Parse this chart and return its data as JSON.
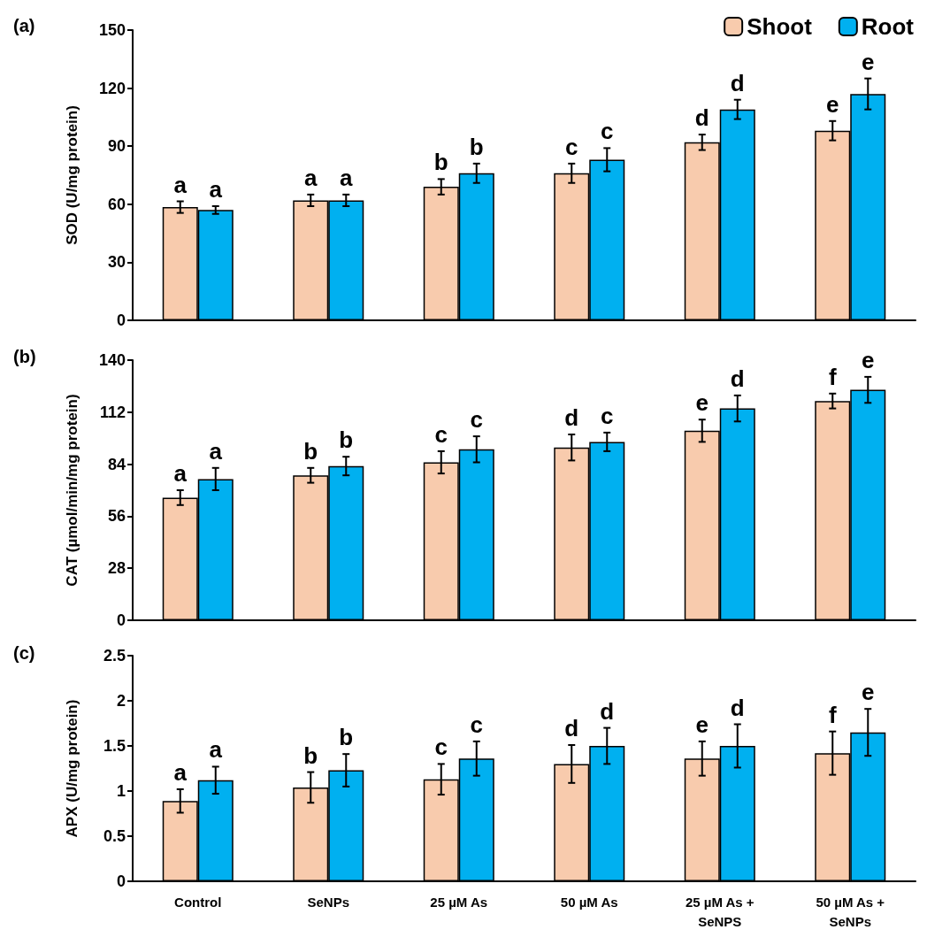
{
  "chart_data": [
    {
      "type": "bar",
      "title": "(a)",
      "ylabel": "SOD (U/mg protein)",
      "categories": [
        null,
        null,
        null,
        null,
        null,
        null
      ],
      "ylim": [
        0,
        150
      ],
      "yticks": [
        0,
        30,
        60,
        90,
        120,
        150
      ],
      "grid": false,
      "legend": "top right",
      "tick_labels": "y",
      "series": [
        {
          "name": "Shoot",
          "color": "#f8cbad",
          "values": [
            58.5,
            62,
            69,
            76,
            92,
            98
          ],
          "errors": [
            3,
            3,
            4,
            5,
            4,
            5
          ],
          "value_labels": [
            "a",
            "a",
            "b",
            "c",
            "d",
            "e"
          ]
        },
        {
          "name": "Root",
          "color": "#00b0f0",
          "values": [
            57,
            62,
            76,
            83,
            109,
            117
          ],
          "errors": [
            2,
            3,
            5,
            6,
            5,
            8
          ],
          "value_labels": [
            "a",
            "a",
            "b",
            "c",
            "d",
            "e"
          ]
        }
      ]
    },
    {
      "type": "bar",
      "title": "(b)",
      "ylabel": "CAT (µmol/min/mg protein)",
      "categories": [
        null,
        null,
        null,
        null,
        null,
        null
      ],
      "ylim": [
        0,
        140
      ],
      "yticks": [
        0,
        28,
        56,
        84,
        112,
        140
      ],
      "grid": false,
      "tick_labels": "y",
      "series": [
        {
          "color": "#f8cbad",
          "values": [
            66,
            78,
            85,
            93,
            102,
            118
          ],
          "errors": [
            4,
            4,
            6,
            7,
            6,
            4
          ],
          "value_labels": [
            "a",
            "b",
            "c",
            "d",
            "e",
            "f"
          ]
        },
        {
          "color": "#00b0f0",
          "values": [
            76,
            83,
            92,
            96,
            114,
            124
          ],
          "errors": [
            6,
            5,
            7,
            5,
            7,
            7
          ],
          "value_labels": [
            "a",
            "b",
            "c",
            "c",
            "d",
            "e"
          ]
        }
      ]
    },
    {
      "type": "bar",
      "title": "(c)",
      "ylabel": "APX (U/mg protein)",
      "categories": [
        "Control",
        "SeNPs",
        "25 µM As",
        "50 µM As",
        "25 µM As + SeNPS",
        "50 µM As + SeNPs"
      ],
      "ylim": [
        0,
        2.5
      ],
      "yticks": [
        0,
        0.5,
        1,
        1.5,
        2,
        2.5
      ],
      "grid": false,
      "series": [
        {
          "color": "#f8cbad",
          "values": [
            0.89,
            1.04,
            1.13,
            1.3,
            1.36,
            1.42
          ],
          "errors": [
            0.13,
            0.17,
            0.17,
            0.21,
            0.19,
            0.24
          ],
          "value_labels": [
            "a",
            "b",
            "c",
            "d",
            "e",
            "f"
          ]
        },
        {
          "color": "#00b0f0",
          "values": [
            1.12,
            1.23,
            1.36,
            1.5,
            1.5,
            1.65
          ],
          "errors": [
            0.15,
            0.18,
            0.19,
            0.2,
            0.24,
            0.26
          ],
          "value_labels": [
            "a",
            "b",
            "c",
            "d",
            "d",
            "e"
          ]
        }
      ]
    }
  ]
}
